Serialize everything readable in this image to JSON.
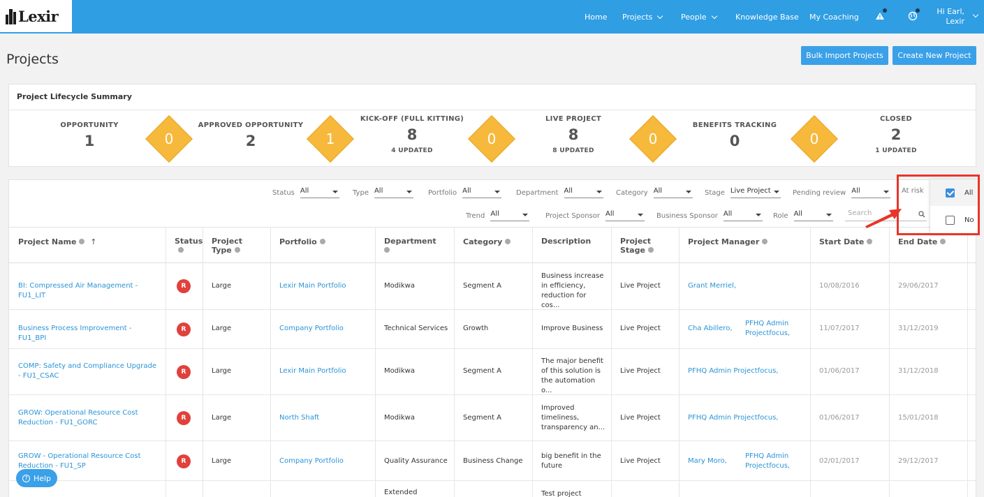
{
  "app": {
    "logo_text": "Lexir"
  },
  "nav": {
    "home": "Home",
    "projects": "Projects",
    "people": "People",
    "knowledge_base": "Knowledge Base",
    "my_coaching": "My Coaching",
    "greeting_line1": "Hi Earl,",
    "greeting_line2": "Lexir"
  },
  "page": {
    "title": "Projects",
    "bulk_import": "Bulk Import Projects",
    "create_new": "Create New Project"
  },
  "summary": {
    "title": "Project Lifecycle Summary",
    "stages": [
      {
        "label": "OPPORTUNITY",
        "count": "1",
        "updated": ""
      },
      {
        "label": "APPROVED OPPORTUNITY",
        "count": "2",
        "updated": ""
      },
      {
        "label": "KICK-OFF (FULL KITTING)",
        "count": "8",
        "updated": "4 UPDATED"
      },
      {
        "label": "LIVE PROJECT",
        "count": "8",
        "updated": "8 UPDATED"
      },
      {
        "label": "BENEFITS TRACKING",
        "count": "0",
        "updated": ""
      },
      {
        "label": "CLOSED",
        "count": "2",
        "updated": "1 UPDATED"
      }
    ],
    "transitions": [
      "0",
      "1",
      "0",
      "0",
      "0"
    ]
  },
  "filters": {
    "status": {
      "label": "Status",
      "value": "All"
    },
    "type": {
      "label": "Type",
      "value": "All"
    },
    "portfolio": {
      "label": "Portfolio",
      "value": "All"
    },
    "department": {
      "label": "Department",
      "value": "All"
    },
    "category": {
      "label": "Category",
      "value": "All"
    },
    "stage": {
      "label": "Stage",
      "value": "Live Project"
    },
    "pending_review": {
      "label": "Pending review",
      "value": "All"
    },
    "at_risk": {
      "label": "At risk"
    },
    "trend": {
      "label": "Trend",
      "value": "All"
    },
    "project_sponsor": {
      "label": "Project Sponsor",
      "value": "All"
    },
    "business_sponsor": {
      "label": "Business Sponsor",
      "value": "All"
    },
    "role": {
      "label": "Role",
      "value": "All"
    },
    "search_placeholder": "Search"
  },
  "at_risk_options": [
    {
      "label": "All",
      "checked": true
    },
    {
      "label": "No",
      "checked": false
    }
  ],
  "columns": {
    "project_name": "Project Name",
    "status": "Status",
    "project_type_1": "Project",
    "project_type_2": "Type",
    "portfolio": "Portfolio",
    "department": "Department",
    "category": "Category",
    "description": "Description",
    "project_stage_1": "Project",
    "project_stage_2": "Stage",
    "project_manager": "Project Manager",
    "start_date": "Start Date",
    "end_date": "End Date"
  },
  "rows": [
    {
      "name": "BI: Compressed Air Management - FU1_LIT",
      "status": "R",
      "type": "Large",
      "portfolio": "Lexir Main Portfolio",
      "department": "Modikwa",
      "category": "Segment A",
      "description": "Business increase in efficiency, reduction for cos...",
      "stage": "Live Project",
      "manager1": "Grant Merriel,",
      "manager2": "",
      "start": "10/08/2016",
      "end": "29/06/2017"
    },
    {
      "name": "Business Process Improvement - FU1_BPI",
      "status": "R",
      "type": "Large",
      "portfolio": "Company Portfolio",
      "department": "Technical Services",
      "category": "Growth",
      "description": "Improve Business",
      "stage": "Live Project",
      "manager1": "Cha Abillero,",
      "manager2": "PFHQ Admin Projectfocus,",
      "start": "11/07/2017",
      "end": "31/12/2019"
    },
    {
      "name": "COMP: Safety and Compliance Upgrade - FU1_CSAC",
      "status": "R",
      "type": "Large",
      "portfolio": "Lexir Main Portfolio",
      "department": "Modikwa",
      "category": "Segment A",
      "description": "The major benefit of this solution is the automation o...",
      "stage": "Live Project",
      "manager1": "PFHQ Admin Projectfocus,",
      "manager2": "",
      "start": "01/06/2017",
      "end": "31/12/2018"
    },
    {
      "name": "GROW: Operational Resource Cost Reduction - FU1_GORC",
      "status": "R",
      "type": "Large",
      "portfolio": "North Shaft",
      "department": "Modikwa",
      "category": "Segment A",
      "description": "Improved timeliness, transparency an...",
      "stage": "Live Project",
      "manager1": "PFHQ Admin Projectfocus,",
      "manager2": "",
      "start": "01/06/2017",
      "end": "15/01/2018"
    },
    {
      "name": "GROW - Operational Resource Cost Reduction - FU1_SP",
      "status": "R",
      "type": "Large",
      "portfolio": "Company Portfolio",
      "department": "Quality Assurance",
      "category": "Business Change",
      "description": "big benefit in the future",
      "stage": "Live Project",
      "manager1": "Mary Moro,",
      "manager2": "PFHQ Admin Projectfocus,",
      "start": "02/01/2017",
      "end": "29/12/2017"
    },
    {
      "name": "",
      "status": "",
      "type": "",
      "portfolio": "",
      "department": "Extended",
      "category": "",
      "description": "Test project",
      "stage": "",
      "manager1": "",
      "manager2": "",
      "start": "",
      "end": ""
    }
  ],
  "help": {
    "label": "Help"
  },
  "colors": {
    "brand": "#2f9ee3",
    "button": "#3aa0e8",
    "diamond": "#f6b93b",
    "badge": "#e0413c",
    "highlight": "#e8352b",
    "link": "#2a94d6"
  }
}
